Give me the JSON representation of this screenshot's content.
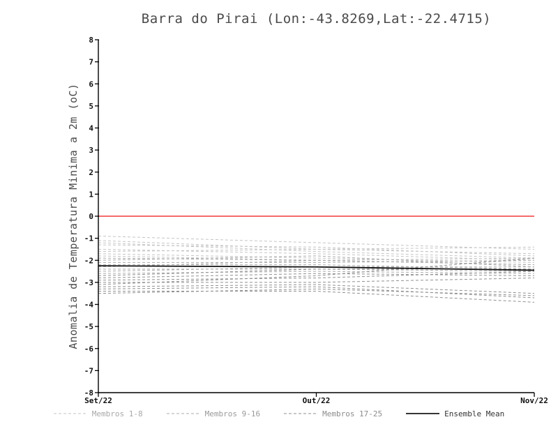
{
  "chart_data": {
    "type": "line",
    "title": "Barra do Pirai (Lon:-43.8269,Lat:-22.4715)",
    "ylabel": "Anomalia de Temperatura Minima a 2m (oC)",
    "xlabel": "",
    "x_categories": [
      "Set/22",
      "Out/22",
      "Nov/22"
    ],
    "ylim": [
      -8,
      8
    ],
    "ytick_step": 1,
    "grid": false,
    "zero_line": {
      "value": 0,
      "color": "#f03c3c"
    },
    "axis_color": "#000000",
    "legend_position": "bottom",
    "legend": [
      {
        "label": "Membros 1-8",
        "style": "dashed",
        "color": "#c4c4c4",
        "label_color": "#a8a8a8"
      },
      {
        "label": "Membros 9-16",
        "style": "dashed",
        "color": "#ababab",
        "label_color": "#9a9a9a"
      },
      {
        "label": "Membros 17-25",
        "style": "dashed",
        "color": "#8f8f8f",
        "label_color": "#8c8c8c"
      },
      {
        "label": "Ensemble Mean",
        "style": "solid",
        "color": "#1a1a1a",
        "label_color": "#333333"
      }
    ],
    "members": [
      {
        "group": 0,
        "values": [
          -0.9,
          -1.2,
          -1.5
        ]
      },
      {
        "group": 0,
        "values": [
          -1.1,
          -1.5,
          -1.4
        ]
      },
      {
        "group": 0,
        "values": [
          -1.2,
          -1.6,
          -1.9
        ]
      },
      {
        "group": 0,
        "values": [
          -1.3,
          -1.4,
          -1.8
        ]
      },
      {
        "group": 0,
        "values": [
          -1.5,
          -1.7,
          -2.0
        ]
      },
      {
        "group": 0,
        "values": [
          -1.6,
          -1.5,
          -1.7
        ]
      },
      {
        "group": 0,
        "values": [
          -1.7,
          -1.9,
          -2.1
        ]
      },
      {
        "group": 0,
        "values": [
          -1.8,
          -2.0,
          -1.9
        ]
      },
      {
        "group": 1,
        "values": [
          -1.9,
          -2.0,
          -2.2
        ]
      },
      {
        "group": 1,
        "values": [
          -2.0,
          -1.8,
          -2.3
        ]
      },
      {
        "group": 1,
        "values": [
          -2.1,
          -2.1,
          -2.0
        ]
      },
      {
        "group": 1,
        "values": [
          -2.2,
          -2.2,
          -2.4
        ]
      },
      {
        "group": 1,
        "values": [
          -2.3,
          -2.0,
          -2.2
        ]
      },
      {
        "group": 1,
        "values": [
          -2.4,
          -2.4,
          -2.5
        ]
      },
      {
        "group": 1,
        "values": [
          -2.5,
          -2.3,
          -2.3
        ]
      },
      {
        "group": 1,
        "values": [
          -2.6,
          -2.5,
          -2.6
        ]
      },
      {
        "group": 2,
        "values": [
          -2.7,
          -2.4,
          -2.4
        ]
      },
      {
        "group": 2,
        "values": [
          -2.8,
          -2.6,
          -2.7
        ]
      },
      {
        "group": 2,
        "values": [
          -2.9,
          -2.8,
          -2.5
        ]
      },
      {
        "group": 2,
        "values": [
          -3.0,
          -3.0,
          -2.8
        ]
      },
      {
        "group": 2,
        "values": [
          -3.1,
          -2.7,
          -1.9
        ]
      },
      {
        "group": 2,
        "values": [
          -3.2,
          -3.1,
          -3.5
        ]
      },
      {
        "group": 2,
        "values": [
          -3.3,
          -3.2,
          -3.7
        ]
      },
      {
        "group": 2,
        "values": [
          -3.4,
          -3.4,
          -3.9
        ]
      },
      {
        "group": 2,
        "values": [
          -3.5,
          -3.3,
          -3.6
        ]
      }
    ],
    "ensemble_mean": {
      "name": "Ensemble Mean",
      "values": [
        -2.25,
        -2.3,
        -2.45
      ]
    }
  }
}
